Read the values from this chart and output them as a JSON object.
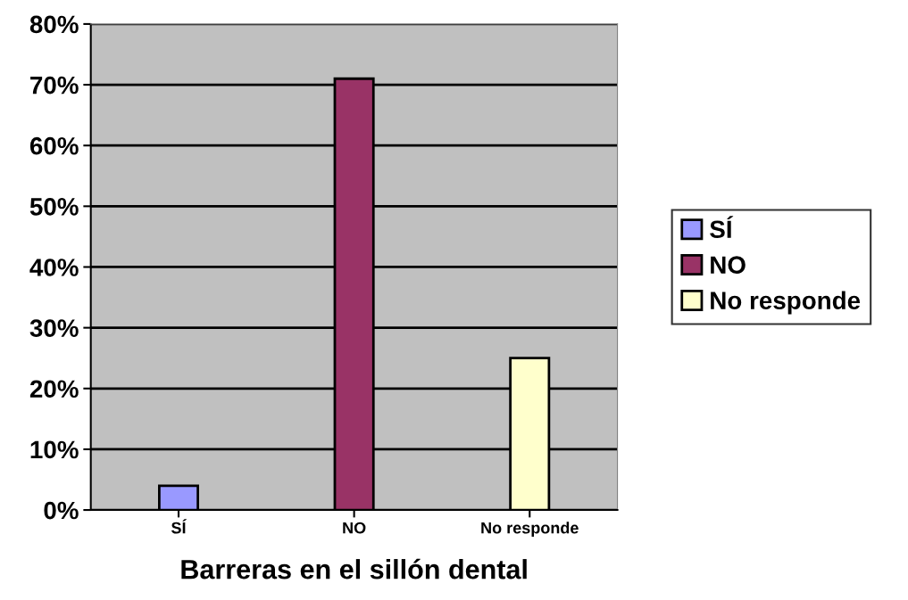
{
  "chart_data": {
    "type": "bar",
    "xlabel": "Barreras en el sillón dental",
    "categories": [
      "SÍ",
      "NO",
      "No responde"
    ],
    "series": [
      {
        "name": "SÍ",
        "color": "#9999ff",
        "values": [
          4,
          null,
          null
        ]
      },
      {
        "name": "NO",
        "color": "#993366",
        "values": [
          null,
          71,
          null
        ]
      },
      {
        "name": "No responde",
        "color": "#ffffcc",
        "values": [
          null,
          null,
          25
        ]
      }
    ],
    "ylim": [
      0,
      80
    ],
    "yticks": [
      {
        "value": 0,
        "label": "0%"
      },
      {
        "value": 10,
        "label": "10%"
      },
      {
        "value": 20,
        "label": "20%"
      },
      {
        "value": 30,
        "label": "30%"
      },
      {
        "value": 40,
        "label": "40%"
      },
      {
        "value": 50,
        "label": "50%"
      },
      {
        "value": 60,
        "label": "60%"
      },
      {
        "value": 70,
        "label": "70%"
      },
      {
        "value": 80,
        "label": "80%"
      }
    ],
    "grid": "y",
    "legend": "right"
  }
}
